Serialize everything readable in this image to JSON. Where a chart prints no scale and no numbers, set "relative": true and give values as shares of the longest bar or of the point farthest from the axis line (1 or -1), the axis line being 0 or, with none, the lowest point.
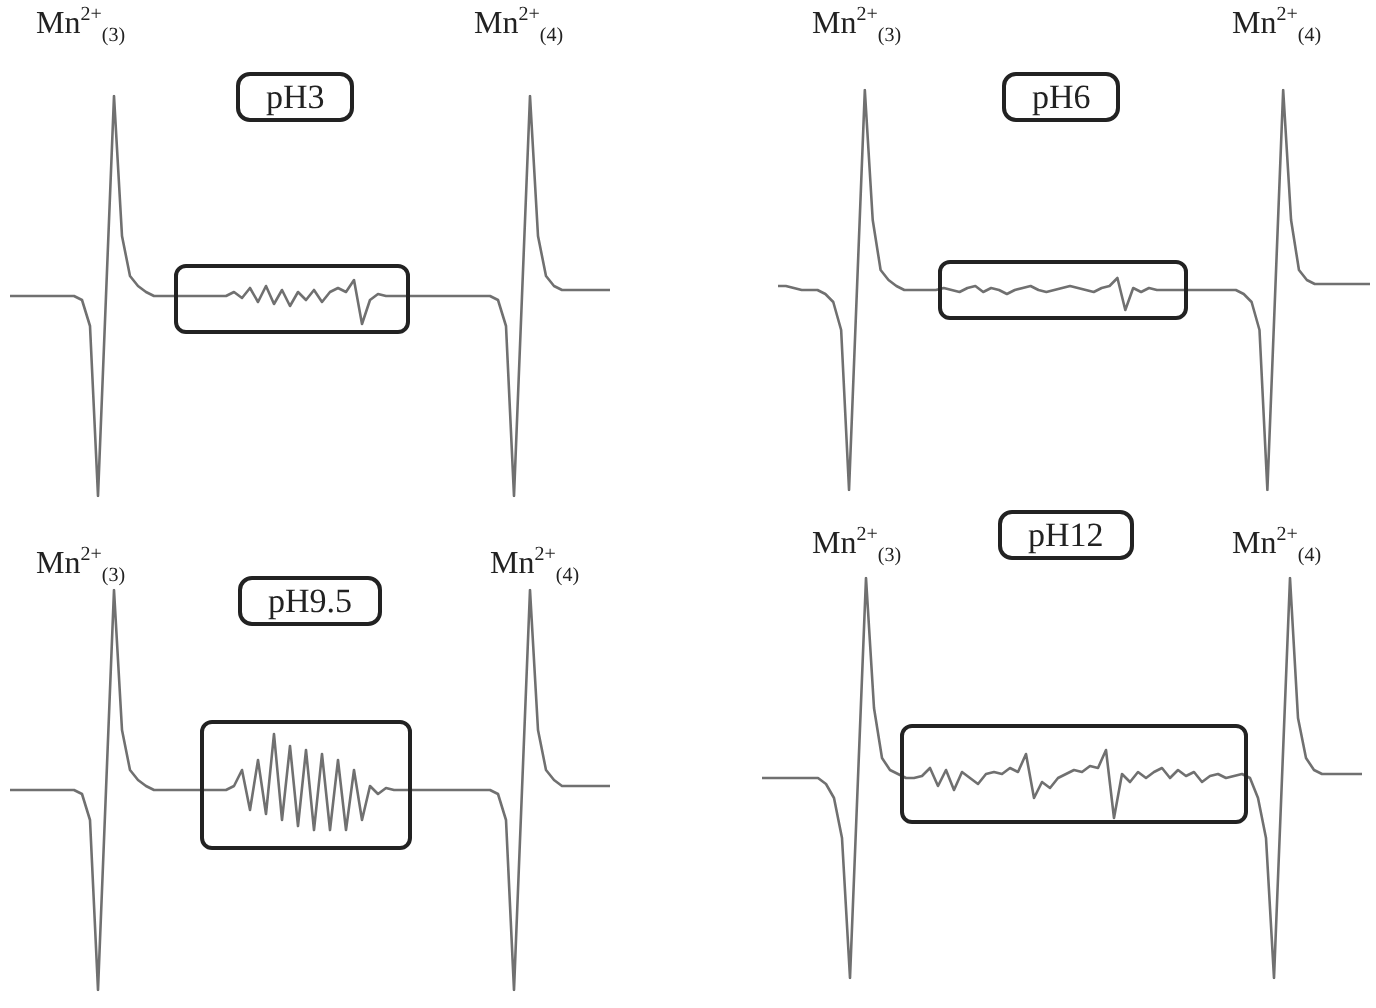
{
  "chart_data": [
    {
      "type": "line",
      "relative": true,
      "title": "pH3",
      "annotations": [
        "Mn$^{2+}$$_{(3)}$",
        "Mn$^{2+}$$_{(4)}$"
      ],
      "color": "#707070",
      "categories": [
        null,
        null,
        null,
        null,
        null,
        null,
        null,
        null,
        null,
        null,
        null,
        null,
        null,
        null,
        null,
        null,
        null,
        null,
        null,
        null,
        null,
        null,
        null,
        null,
        null,
        null,
        null,
        null,
        null,
        null,
        null,
        null,
        null,
        null,
        null,
        null,
        null,
        null,
        null,
        null,
        null,
        null,
        null,
        null,
        null,
        null,
        null,
        null,
        null,
        null,
        null,
        null,
        null,
        null,
        null,
        null,
        null,
        null,
        null,
        null,
        null,
        null,
        null,
        null,
        null,
        null,
        null,
        null,
        null,
        null,
        null,
        null,
        null,
        null,
        null,
        null
      ],
      "values": [
        0.5,
        0.5,
        0.5,
        0.5,
        0.5,
        0.5,
        0.5,
        0.5,
        0.5,
        0.49,
        0.425,
        0,
        0.5,
        1,
        0.65,
        0.55,
        0.525,
        0.51,
        0.5,
        0.5,
        0.5,
        0.5,
        0.5,
        0.5,
        0.5,
        0.5,
        0.5,
        0.5,
        0.51,
        0.495,
        0.52,
        0.485,
        0.525,
        0.48,
        0.515,
        0.475,
        0.51,
        0.49,
        0.515,
        0.485,
        0.51,
        0.52,
        0.51,
        0.54,
        0.43,
        0.49,
        0.505,
        0.5,
        0.5,
        0.5,
        0.5,
        0.5,
        0.5,
        0.5,
        0.5,
        0.5,
        0.5,
        0.5,
        0.5,
        0.5,
        0.5,
        0.49,
        0.425,
        0,
        0.5,
        1,
        0.65,
        0.55,
        0.525,
        0.515,
        0.515,
        0.515,
        0.515,
        0.515,
        0.515,
        0.515
      ]
    },
    {
      "type": "line",
      "relative": true,
      "title": "pH6",
      "annotations": [
        "Mn$^{2+}$$_{(3)}$",
        "Mn$^{2+}$$_{(4)}$"
      ],
      "color": "#707070",
      "categories": [
        null,
        null,
        null,
        null,
        null,
        null,
        null,
        null,
        null,
        null,
        null,
        null,
        null,
        null,
        null,
        null,
        null,
        null,
        null,
        null,
        null,
        null,
        null,
        null,
        null,
        null,
        null,
        null,
        null,
        null,
        null,
        null,
        null,
        null,
        null,
        null,
        null,
        null,
        null,
        null,
        null,
        null,
        null,
        null,
        null,
        null,
        null,
        null,
        null,
        null,
        null,
        null,
        null,
        null,
        null,
        null,
        null,
        null,
        null,
        null,
        null,
        null,
        null,
        null,
        null,
        null,
        null,
        null,
        null,
        null,
        null,
        null,
        null,
        null,
        null,
        null
      ],
      "values": [
        0.51,
        0.51,
        0.505,
        0.5,
        0.5,
        0.5,
        0.49,
        0.47,
        0.4,
        0,
        0.5,
        1,
        0.675,
        0.55,
        0.525,
        0.51,
        0.5,
        0.5,
        0.5,
        0.5,
        0.5,
        0.505,
        0.5,
        0.495,
        0.505,
        0.51,
        0.495,
        0.505,
        0.5,
        0.49,
        0.5,
        0.505,
        0.51,
        0.5,
        0.495,
        0.5,
        0.505,
        0.51,
        0.505,
        0.5,
        0.495,
        0.505,
        0.51,
        0.53,
        0.45,
        0.505,
        0.495,
        0.505,
        0.5,
        0.5,
        0.5,
        0.5,
        0.5,
        0.5,
        0.5,
        0.5,
        0.5,
        0.5,
        0.5,
        0.49,
        0.47,
        0.4,
        0,
        0.5,
        1,
        0.675,
        0.55,
        0.525,
        0.515,
        0.515,
        0.515,
        0.515,
        0.515,
        0.515,
        0.515,
        0.515
      ]
    },
    {
      "type": "line",
      "relative": true,
      "title": "pH9.5",
      "annotations": [
        "Mn$^{2+}$$_{(3)}$",
        "Mn$^{2+}$$_{(4)}$"
      ],
      "color": "#707070",
      "categories": [
        null,
        null,
        null,
        null,
        null,
        null,
        null,
        null,
        null,
        null,
        null,
        null,
        null,
        null,
        null,
        null,
        null,
        null,
        null,
        null,
        null,
        null,
        null,
        null,
        null,
        null,
        null,
        null,
        null,
        null,
        null,
        null,
        null,
        null,
        null,
        null,
        null,
        null,
        null,
        null,
        null,
        null,
        null,
        null,
        null,
        null,
        null,
        null,
        null,
        null,
        null,
        null,
        null,
        null,
        null,
        null,
        null,
        null,
        null,
        null,
        null,
        null,
        null,
        null,
        null,
        null,
        null,
        null,
        null,
        null,
        null,
        null,
        null,
        null,
        null,
        null
      ],
      "values": [
        0.5,
        0.5,
        0.5,
        0.5,
        0.5,
        0.5,
        0.5,
        0.5,
        0.5,
        0.49,
        0.425,
        0,
        0.5,
        1,
        0.65,
        0.55,
        0.525,
        0.51,
        0.5,
        0.5,
        0.5,
        0.5,
        0.5,
        0.5,
        0.5,
        0.5,
        0.5,
        0.5,
        0.51,
        0.55,
        0.45,
        0.575,
        0.44,
        0.64,
        0.425,
        0.61,
        0.41,
        0.6,
        0.4,
        0.59,
        0.4,
        0.575,
        0.4,
        0.55,
        0.425,
        0.51,
        0.49,
        0.505,
        0.5,
        0.5,
        0.5,
        0.5,
        0.5,
        0.5,
        0.5,
        0.5,
        0.5,
        0.5,
        0.5,
        0.5,
        0.5,
        0.49,
        0.425,
        0,
        0.5,
        1,
        0.65,
        0.55,
        0.525,
        0.51,
        0.51,
        0.51,
        0.51,
        0.51,
        0.51,
        0.51
      ]
    },
    {
      "type": "line",
      "relative": true,
      "title": "pH12",
      "annotations": [
        "Mn$^{2+}$$_{(3)}$",
        "Mn$^{2+}$$_{(4)}$"
      ],
      "color": "#707070",
      "categories": [
        null,
        null,
        null,
        null,
        null,
        null,
        null,
        null,
        null,
        null,
        null,
        null,
        null,
        null,
        null,
        null,
        null,
        null,
        null,
        null,
        null,
        null,
        null,
        null,
        null,
        null,
        null,
        null,
        null,
        null,
        null,
        null,
        null,
        null,
        null,
        null,
        null,
        null,
        null,
        null,
        null,
        null,
        null,
        null,
        null,
        null,
        null,
        null,
        null,
        null,
        null,
        null,
        null,
        null,
        null,
        null,
        null,
        null,
        null,
        null,
        null,
        null,
        null,
        null,
        null,
        null,
        null,
        null,
        null,
        null,
        null,
        null,
        null,
        null,
        null,
        null
      ],
      "values": [
        0.5,
        0.5,
        0.5,
        0.5,
        0.5,
        0.5,
        0.5,
        0.5,
        0.485,
        0.45,
        0.35,
        0,
        0.5,
        1,
        0.675,
        0.55,
        0.52,
        0.51,
        0.5,
        0.5,
        0.505,
        0.525,
        0.48,
        0.52,
        0.47,
        0.515,
        0.5,
        0.485,
        0.51,
        0.515,
        0.51,
        0.525,
        0.515,
        0.56,
        0.45,
        0.49,
        0.475,
        0.5,
        0.51,
        0.52,
        0.515,
        0.53,
        0.525,
        0.57,
        0.4,
        0.51,
        0.49,
        0.515,
        0.5,
        0.515,
        0.525,
        0.5,
        0.52,
        0.505,
        0.515,
        0.49,
        0.505,
        0.51,
        0.5,
        0.505,
        0.51,
        0.5,
        0.45,
        0.35,
        0,
        0.5,
        1,
        0.65,
        0.55,
        0.52,
        0.51,
        0.51,
        0.51,
        0.51,
        0.51,
        0.51
      ]
    }
  ]
}
